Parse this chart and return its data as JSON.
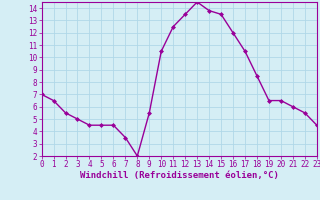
{
  "x": [
    0,
    1,
    2,
    3,
    4,
    5,
    6,
    7,
    8,
    9,
    10,
    11,
    12,
    13,
    14,
    15,
    16,
    17,
    18,
    19,
    20,
    21,
    22,
    23
  ],
  "y": [
    7.0,
    6.5,
    5.5,
    5.0,
    4.5,
    4.5,
    4.5,
    3.5,
    2.0,
    5.5,
    10.5,
    12.5,
    13.5,
    14.5,
    13.8,
    13.5,
    12.0,
    10.5,
    8.5,
    6.5,
    6.5,
    6.0,
    5.5,
    4.5
  ],
  "line_color": "#990099",
  "marker": "D",
  "marker_size": 2.0,
  "xlim": [
    0,
    23
  ],
  "ylim": [
    2,
    14.5
  ],
  "yticks": [
    2,
    3,
    4,
    5,
    6,
    7,
    8,
    9,
    10,
    11,
    12,
    13,
    14
  ],
  "xticks": [
    0,
    1,
    2,
    3,
    4,
    5,
    6,
    7,
    8,
    9,
    10,
    11,
    12,
    13,
    14,
    15,
    16,
    17,
    18,
    19,
    20,
    21,
    22,
    23
  ],
  "xlabel": "Windchill (Refroidissement éolien,°C)",
  "bg_color": "#d5eef5",
  "grid_color": "#b0d8e8",
  "text_color": "#990099",
  "linewidth": 1.0,
  "title_area_color": "#aaaacc",
  "font_size_ticks": 5.5,
  "font_size_xlabel": 6.5
}
